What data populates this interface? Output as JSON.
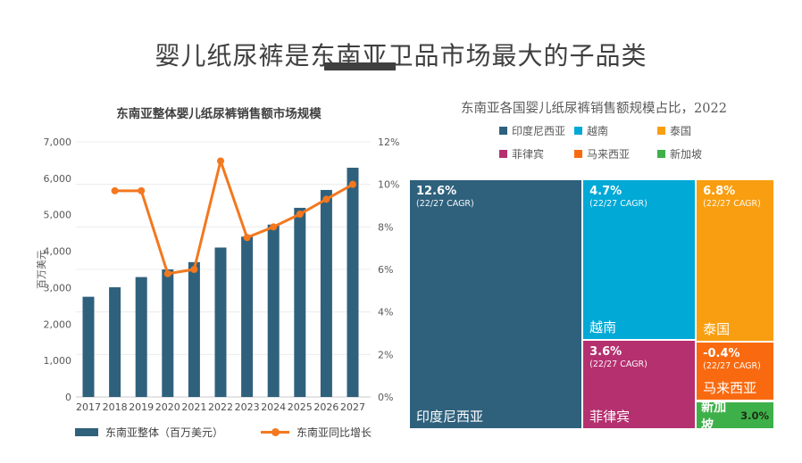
{
  "page": {
    "title": "婴儿纸尿裤是东南亚卫品市场最大的子品类",
    "title_color": "#3F3F3F",
    "underline_color": "#404040",
    "background": "#FFFFFF"
  },
  "chart_data": [
    {
      "type": "bar",
      "subtype": "bar-line-combo",
      "title": "东南亚整体婴儿纸尿裤销售额市场规模",
      "categories": [
        "2017",
        "2018",
        "2019",
        "2020",
        "2021",
        "2022",
        "2023",
        "2024",
        "2025",
        "2026",
        "2027"
      ],
      "series": [
        {
          "name": "东南亚整体（百万美元）",
          "type": "bar",
          "axis": "left",
          "color": "#2F617D",
          "values": [
            2750,
            3010,
            3290,
            3500,
            3700,
            4100,
            4400,
            4730,
            5190,
            5680,
            6290
          ]
        },
        {
          "name": "东南亚同比增长",
          "type": "line",
          "axis": "right",
          "color": "#F3781F",
          "values": [
            null,
            9.7,
            9.7,
            5.8,
            6.0,
            11.1,
            7.5,
            8.0,
            8.6,
            9.3,
            10.0
          ]
        }
      ],
      "left_axis": {
        "label": "百万美元",
        "min": 0,
        "max": 7000,
        "ticks": [
          "7,000",
          "6,000",
          "5,000",
          "4,000",
          "3,000",
          "2,000",
          "1,000",
          "0"
        ]
      },
      "right_axis": {
        "min": 0,
        "max": 12,
        "ticks": [
          "12%",
          "10%",
          "8%",
          "6%",
          "4%",
          "2%",
          "0%"
        ]
      },
      "grid": true,
      "legend_position": "bottom",
      "tick_color": "#595959",
      "xlabel_color": "#4D4D4D",
      "grid_color": "#ECECEC",
      "axisline_color": "#C9C9C9"
    },
    {
      "type": "heatmap",
      "subtype": "treemap",
      "title": "东南亚各国婴儿纸尿裤销售额规模占比，2022",
      "legend_position": "top",
      "legend": [
        {
          "label": "印度尼西亚",
          "color": "#2F617D"
        },
        {
          "label": "越南",
          "color": "#00A9D6"
        },
        {
          "label": "泰国",
          "color": "#F99E10"
        },
        {
          "label": "菲律宾",
          "color": "#B5306F"
        },
        {
          "label": "马来西亚",
          "color": "#F96A10"
        },
        {
          "label": "新加坡",
          "color": "#3EB049"
        }
      ],
      "cells": [
        {
          "id": "indonesia",
          "country": "印度尼西亚",
          "cagr": "12.6%",
          "cagr_note": "(22/27 CAGR)",
          "color": "#2F617D",
          "text_color": "#FFFFFF",
          "rect": {
            "l": 0,
            "t": 0,
            "w": 47.2,
            "h": 100
          }
        },
        {
          "id": "vietnam",
          "country": "越南",
          "cagr": "4.7%",
          "cagr_note": "(22/27 CAGR)",
          "color": "#00A9D6",
          "text_color": "#FFFFFF",
          "rect": {
            "l": 47.7,
            "t": 0,
            "w": 30.7,
            "h": 64.0
          }
        },
        {
          "id": "philippines",
          "country": "菲律宾",
          "cagr": "3.6%",
          "cagr_note": "(22/27 CAGR)",
          "color": "#B5306F",
          "text_color": "#FFFFFF",
          "rect": {
            "l": 47.7,
            "t": 64.7,
            "w": 30.7,
            "h": 35.3
          }
        },
        {
          "id": "thailand",
          "country": "泰国",
          "cagr": "6.8%",
          "cagr_note": "(22/27 CAGR)",
          "color": "#F99E10",
          "text_color": "#FFFFFF",
          "rect": {
            "l": 78.9,
            "t": 0,
            "w": 21.1,
            "h": 64.7
          }
        },
        {
          "id": "malaysia",
          "country": "马来西亚",
          "cagr": "-0.4%",
          "cagr_note": "(22/27 CAGR)",
          "color": "#F96A10",
          "text_color": "#FFFFFF",
          "rect": {
            "l": 78.9,
            "t": 65.4,
            "w": 21.1,
            "h": 23.0
          }
        },
        {
          "id": "singapore",
          "country": "新加坡",
          "share": "3.0%",
          "layout": "inline",
          "color": "#3EB049",
          "text_color": "#FFFFFF",
          "share_text_color": "#1E2B16",
          "rect": {
            "l": 78.9,
            "t": 89.6,
            "w": 21.1,
            "h": 10.4
          }
        }
      ]
    }
  ]
}
